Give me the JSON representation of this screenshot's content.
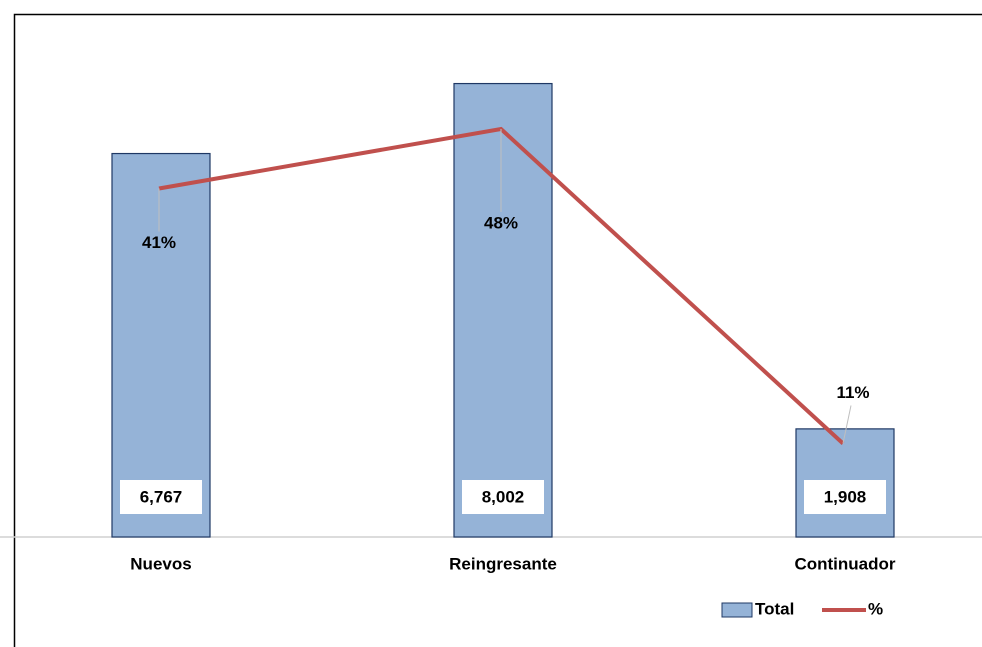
{
  "chart_data": {
    "type": "bar",
    "categories": [
      "Nuevos",
      "Reingresante",
      "Continuador"
    ],
    "series": [
      {
        "name": "Total",
        "type": "bar",
        "color": "#95b3d7",
        "values": [
          6767,
          8002,
          1908
        ],
        "value_labels": [
          "6,767",
          "8,002",
          "1,908"
        ]
      },
      {
        "name": "%",
        "type": "line",
        "axis": "y2",
        "color": "#c0504d",
        "values": [
          41,
          48,
          11
        ],
        "value_labels": [
          "41%",
          "48%",
          "11%"
        ]
      }
    ],
    "ylim": [
      0,
      9000
    ],
    "y2lim": [
      0,
      60
    ],
    "legend": "bottom-right"
  }
}
